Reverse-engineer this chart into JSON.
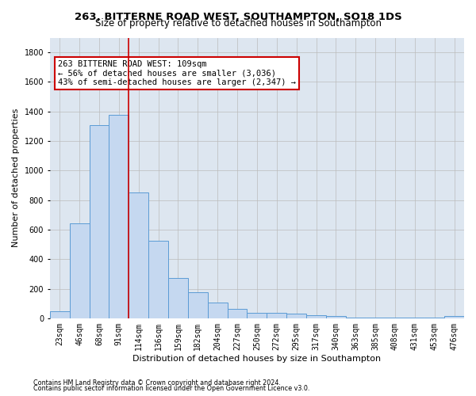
{
  "title_line1": "263, BITTERNE ROAD WEST, SOUTHAMPTON, SO18 1DS",
  "title_line2": "Size of property relative to detached houses in Southampton",
  "xlabel": "Distribution of detached houses by size in Southampton",
  "ylabel": "Number of detached properties",
  "footnote1": "Contains HM Land Registry data © Crown copyright and database right 2024.",
  "footnote2": "Contains public sector information licensed under the Open Government Licence v3.0.",
  "categories": [
    "23sqm",
    "46sqm",
    "68sqm",
    "91sqm",
    "114sqm",
    "136sqm",
    "159sqm",
    "182sqm",
    "204sqm",
    "227sqm",
    "250sqm",
    "272sqm",
    "295sqm",
    "317sqm",
    "340sqm",
    "363sqm",
    "385sqm",
    "408sqm",
    "431sqm",
    "453sqm",
    "476sqm"
  ],
  "values": [
    50,
    640,
    1305,
    1375,
    850,
    525,
    270,
    175,
    105,
    65,
    35,
    35,
    30,
    20,
    15,
    5,
    5,
    5,
    5,
    3,
    15
  ],
  "bar_color": "#c5d8f0",
  "bar_edge_color": "#5b9bd5",
  "vline_color": "#cc0000",
  "annotation_text": "263 BITTERNE ROAD WEST: 109sqm\n← 56% of detached houses are smaller (3,036)\n43% of semi-detached houses are larger (2,347) →",
  "annotation_box_color": "white",
  "annotation_box_edge": "#cc0000",
  "ylim": [
    0,
    1900
  ],
  "yticks": [
    0,
    200,
    400,
    600,
    800,
    1000,
    1200,
    1400,
    1600,
    1800
  ],
  "grid_color": "#bbbbbb",
  "bg_color": "#dde6f0",
  "title_fontsize": 9.5,
  "subtitle_fontsize": 8.5,
  "label_fontsize": 8,
  "tick_fontsize": 7,
  "annot_fontsize": 7.5
}
